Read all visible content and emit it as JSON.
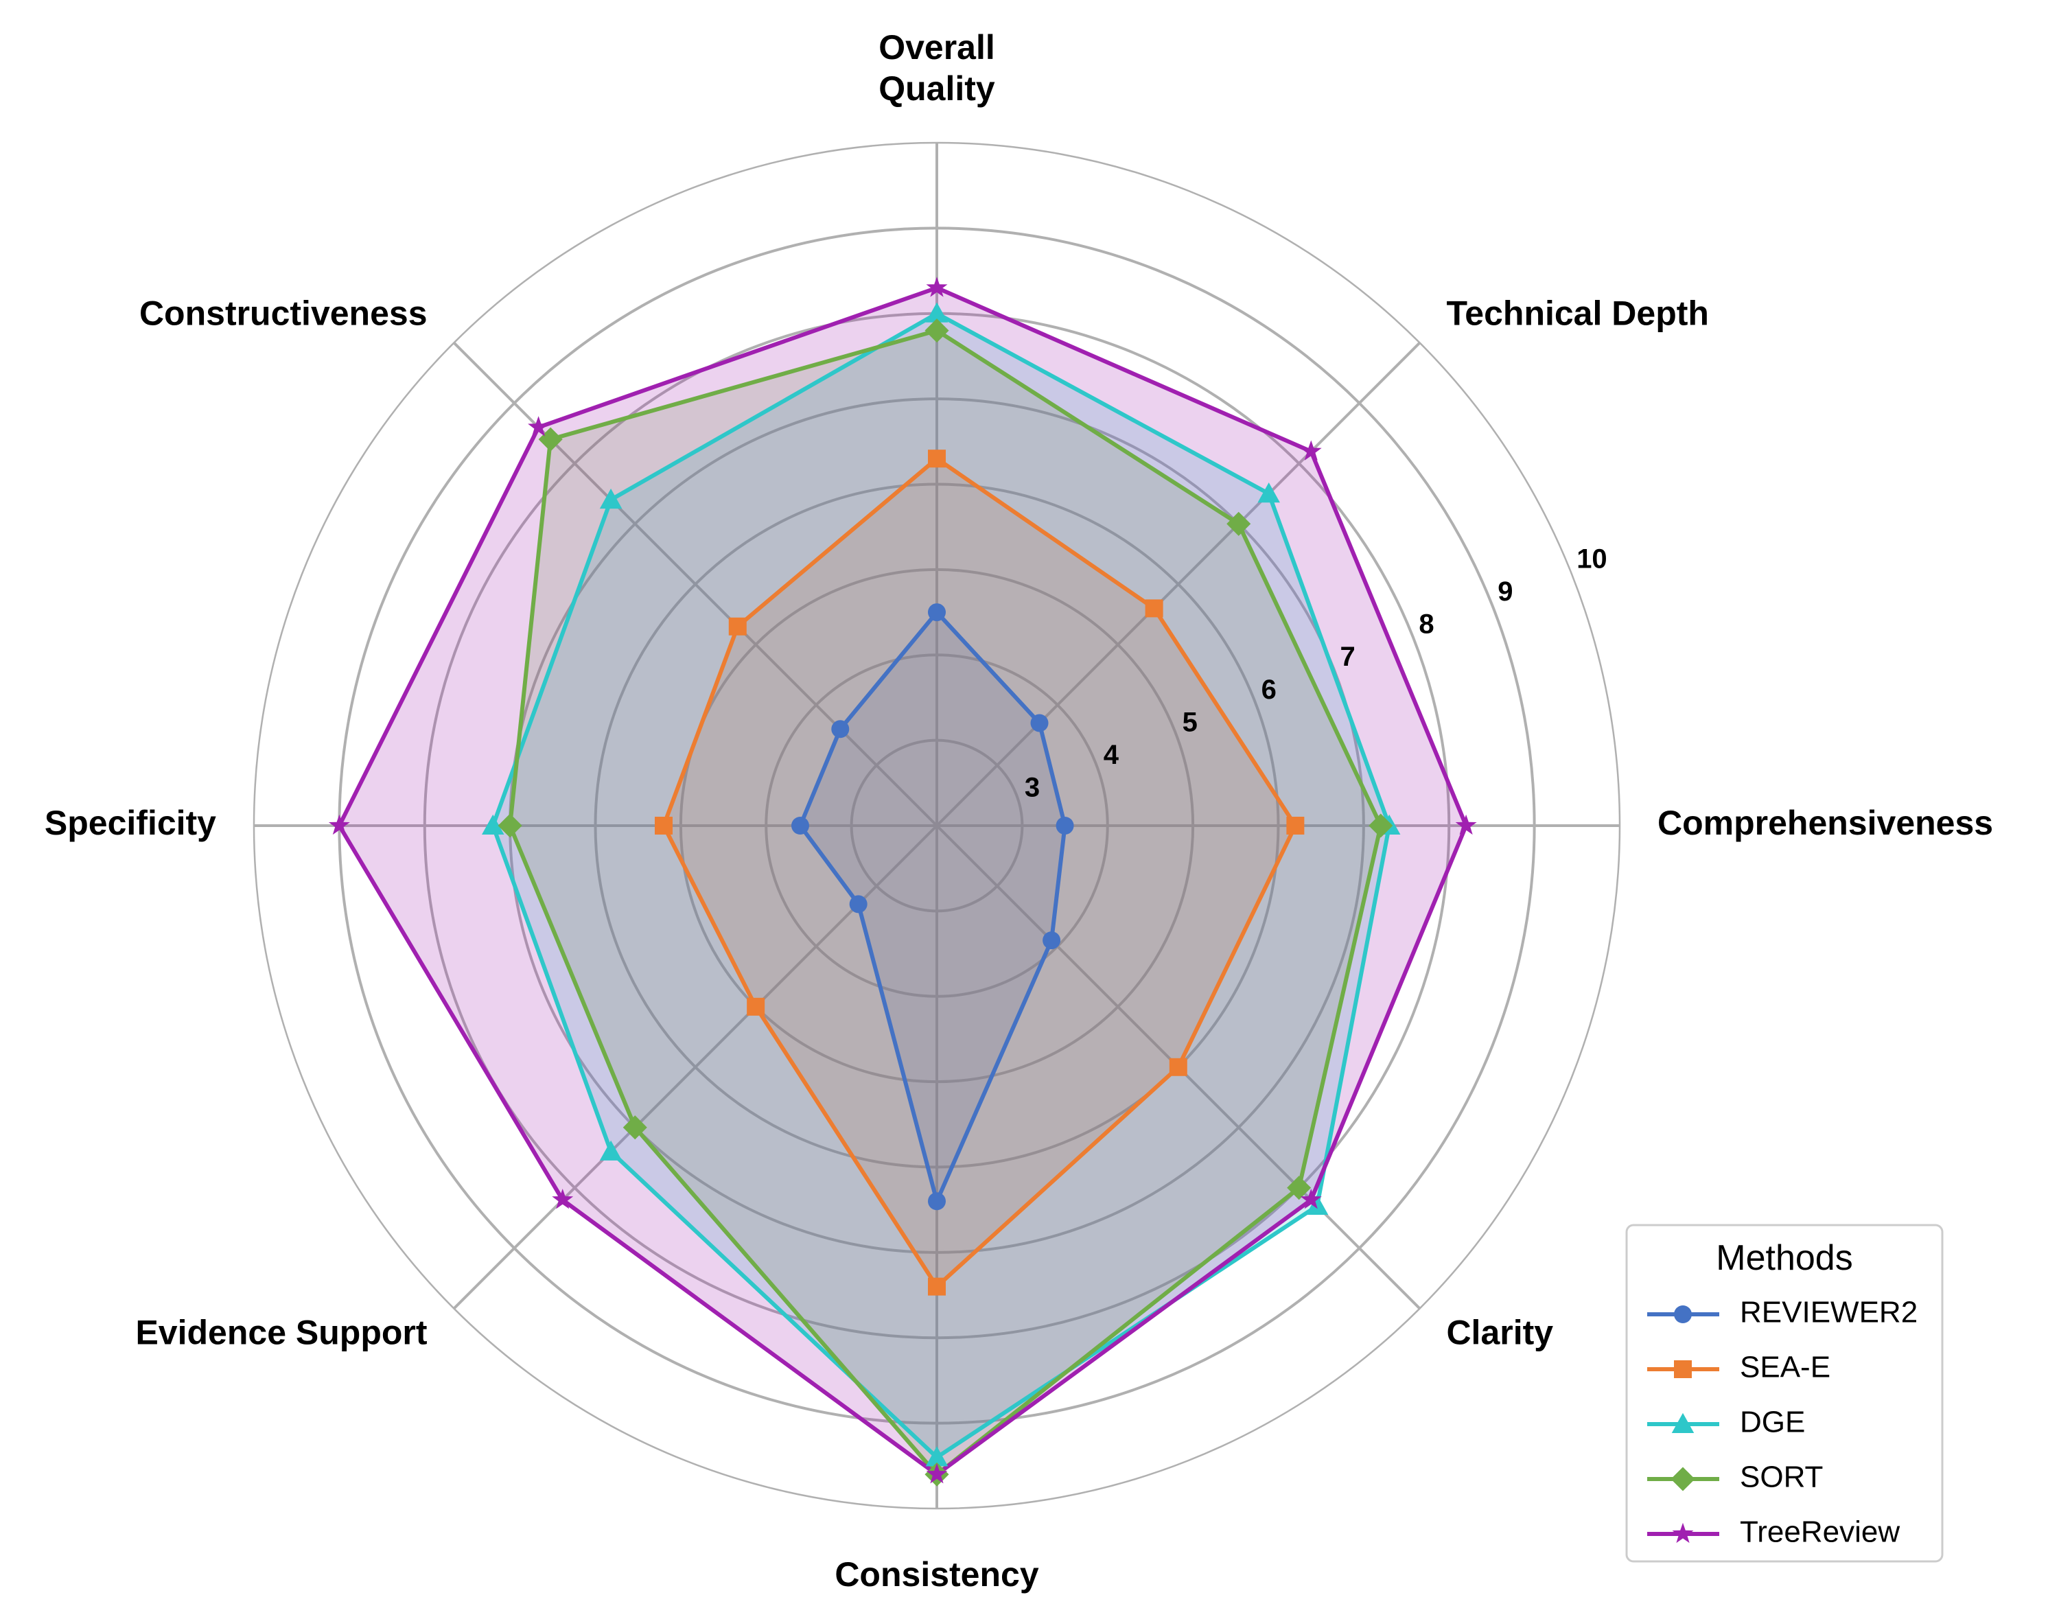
{
  "chart_data": {
    "type": "radar",
    "axes": [
      "Overall\nQuality",
      "Technical Depth",
      "Comprehensiveness",
      "Clarity",
      "Consistency",
      "Evidence Support",
      "Specificity",
      "Constructiveness"
    ],
    "r_ticks": [
      "3",
      "4",
      "5",
      "6",
      "7",
      "8",
      "9",
      "10"
    ],
    "r_range": [
      2,
      10
    ],
    "grid": true,
    "legend_title": "Methods",
    "legend_position": "bottom-right",
    "series": [
      {
        "name": "REVIEWER2",
        "color": "#4472c4",
        "marker": "circle",
        "values": [
          4.5,
          3.7,
          3.5,
          3.9,
          6.4,
          3.3,
          3.6,
          3.6
        ]
      },
      {
        "name": "SEA-E",
        "color": "#ed7d31",
        "marker": "square",
        "values": [
          6.3,
          5.6,
          6.2,
          6.0,
          7.4,
          5.0,
          5.2,
          5.3
        ]
      },
      {
        "name": "DGE",
        "color": "#2ec7c9",
        "marker": "triangle",
        "values": [
          8.0,
          7.5,
          7.3,
          8.3,
          9.4,
          7.4,
          7.2,
          7.4
        ]
      },
      {
        "name": "SORT",
        "color": "#70ad47",
        "marker": "diamond",
        "values": [
          7.8,
          7.0,
          7.2,
          8.0,
          9.6,
          7.0,
          7.0,
          8.4
        ]
      },
      {
        "name": "TreeReview",
        "color": "#a020b0",
        "marker": "star",
        "values": [
          8.3,
          8.2,
          8.2,
          8.2,
          9.6,
          8.2,
          9.0,
          8.6
        ]
      }
    ]
  }
}
